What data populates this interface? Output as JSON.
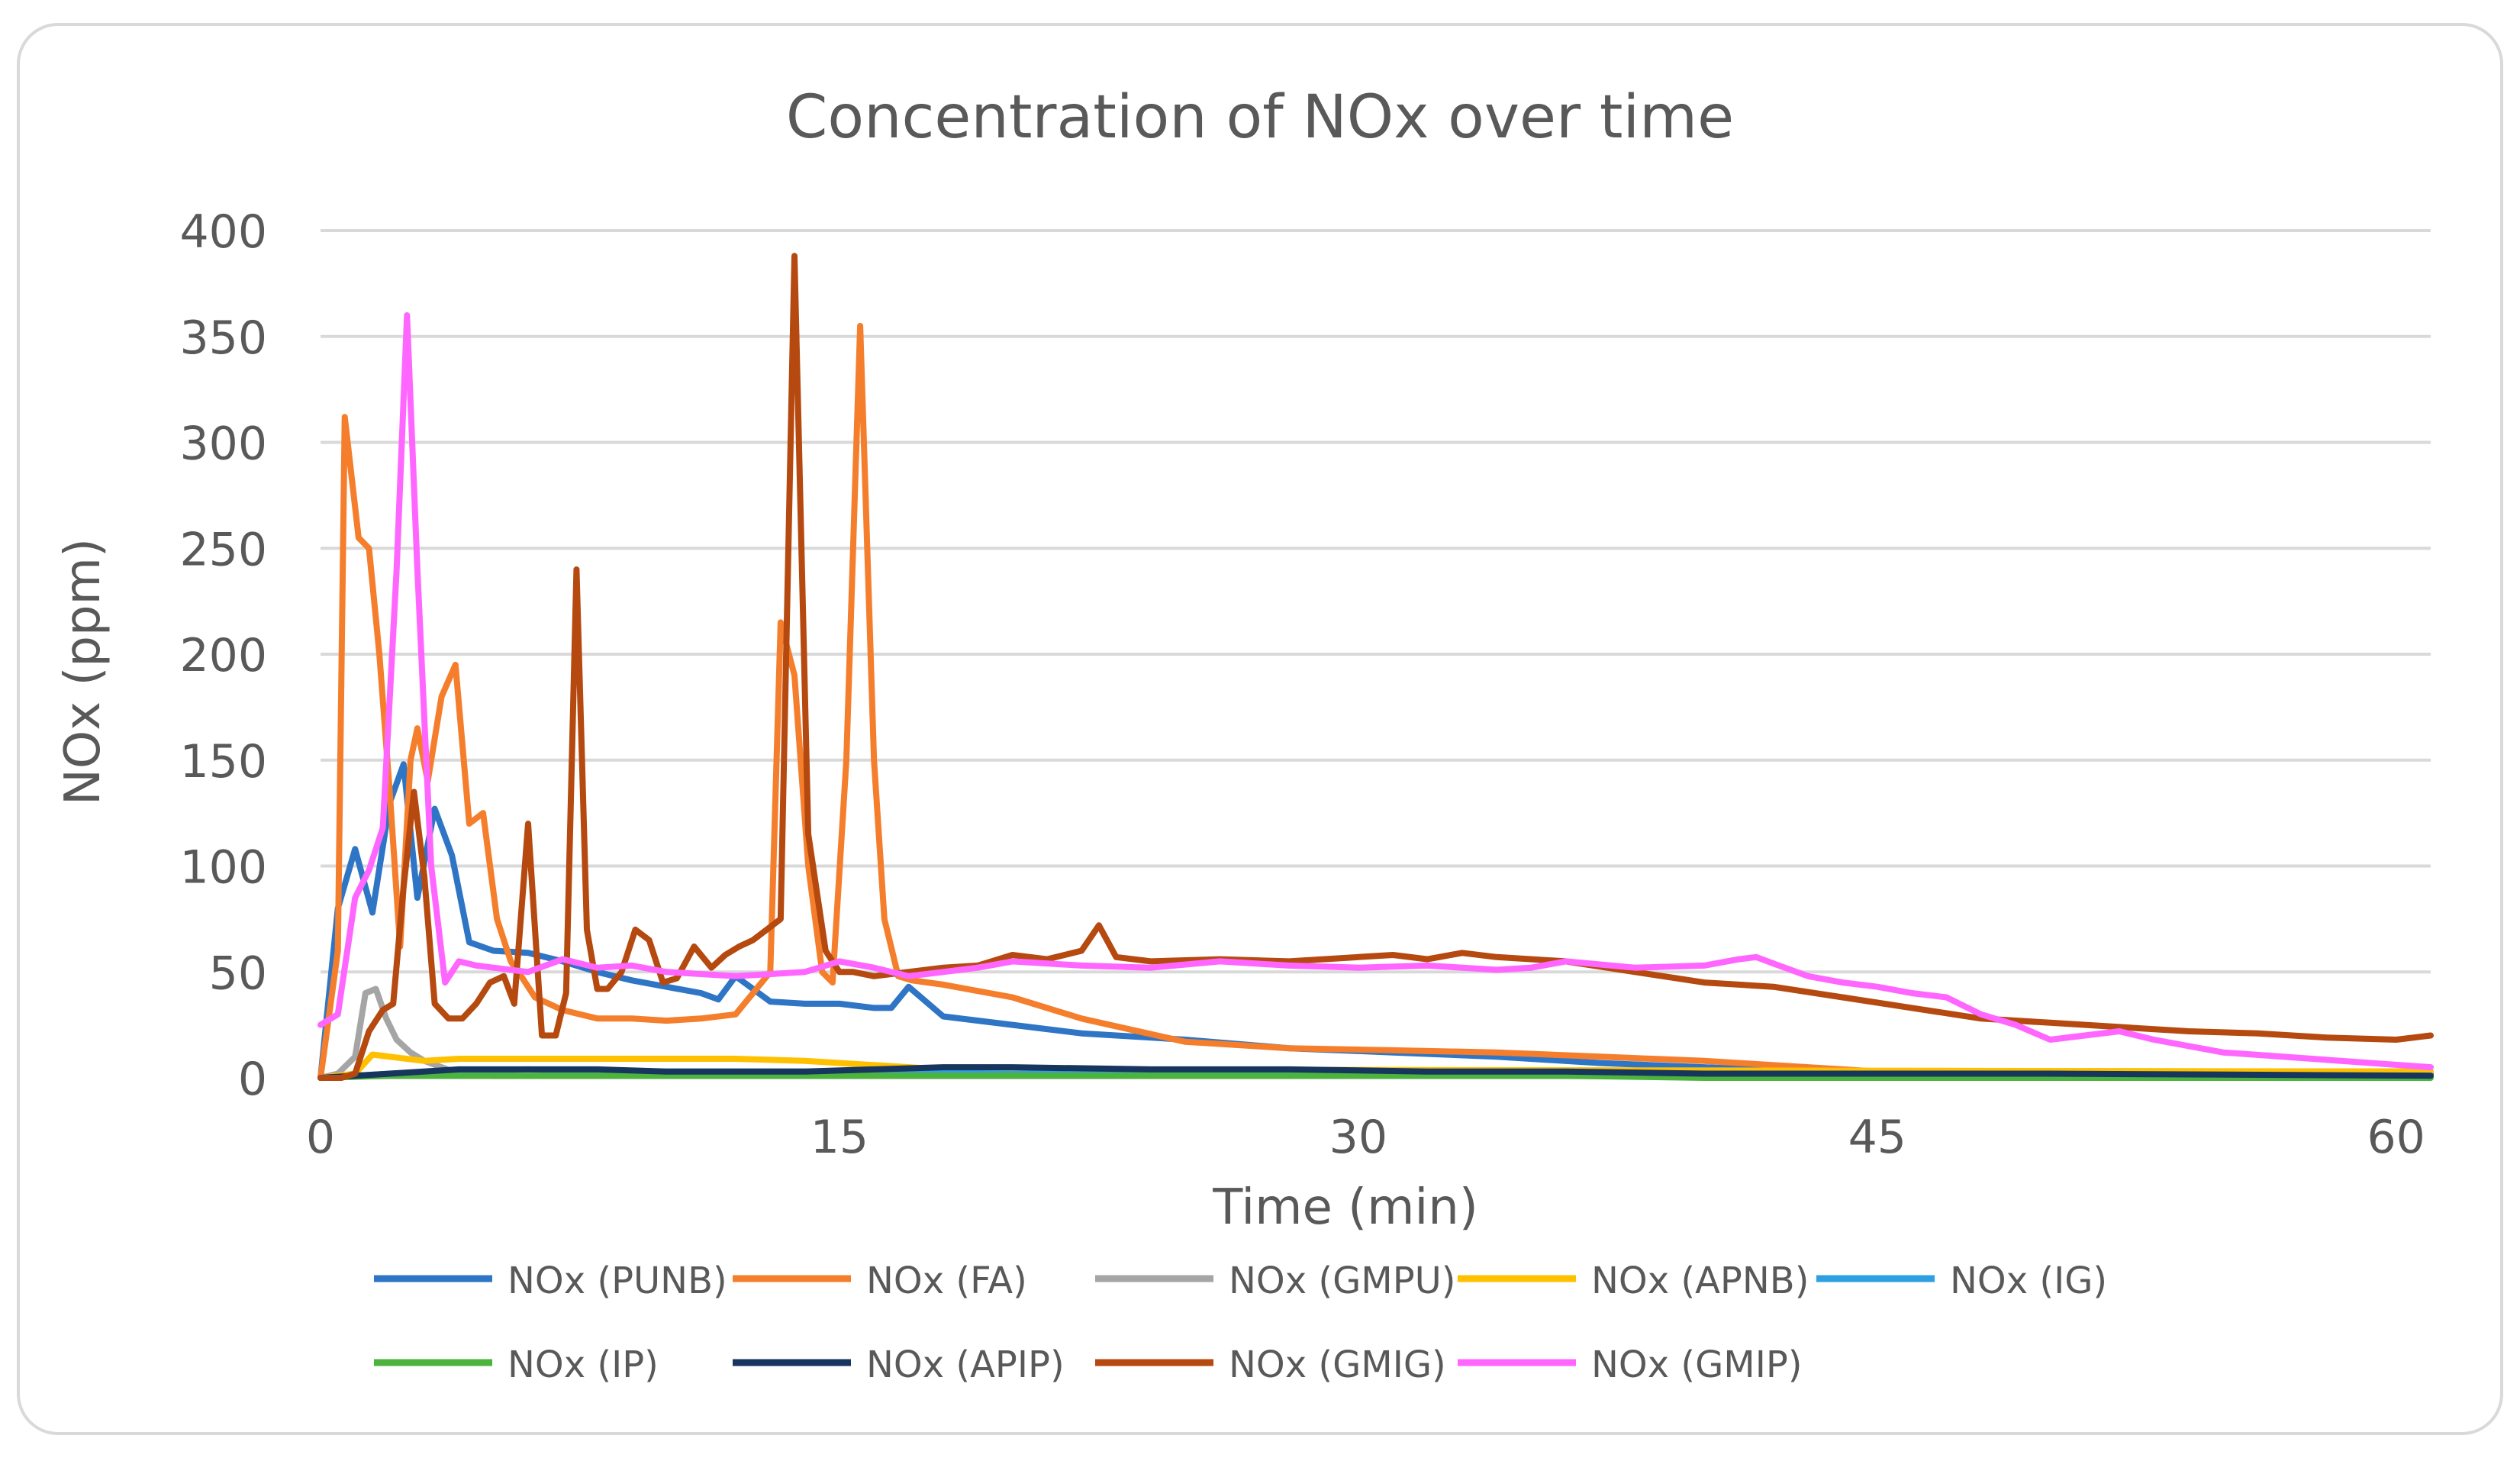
{
  "chart_data": {
    "type": "line",
    "title": "Concentration of NOx over time",
    "xlabel": "Time (min)",
    "ylabel": "NOx (ppm)",
    "xlim": [
      0,
      61
    ],
    "ylim": [
      0,
      400
    ],
    "x_ticks": [
      0,
      15,
      30,
      45,
      60
    ],
    "y_ticks": [
      0,
      50,
      100,
      150,
      200,
      250,
      300,
      350,
      400
    ],
    "grid": "horizontal",
    "legend_position": "bottom",
    "series": [
      {
        "name": "NOx (PUNB)",
        "color": "#2E75C5",
        "x": [
          0,
          0.5,
          1,
          1.5,
          2,
          2.4,
          2.8,
          3.3,
          3.8,
          4.3,
          5,
          6,
          7,
          8,
          9,
          10,
          11,
          11.5,
          12,
          13,
          14,
          15,
          16,
          16.5,
          17,
          18,
          20,
          22,
          25,
          28,
          31,
          34,
          37,
          40,
          43,
          46,
          50,
          55,
          61
        ],
        "y": [
          0,
          80,
          108,
          78,
          130,
          148,
          85,
          127,
          105,
          64,
          60,
          59,
          55,
          50,
          46,
          43,
          40,
          37,
          48,
          36,
          35,
          35,
          33,
          33,
          43,
          29,
          25,
          21,
          18,
          14,
          12,
          10,
          7,
          5,
          3,
          2,
          2,
          2,
          2
        ]
      },
      {
        "name": "NOx (FA)",
        "color": "#F47E2C",
        "x": [
          0,
          0.5,
          0.7,
          1.1,
          1.4,
          1.7,
          2.0,
          2.3,
          2.6,
          2.8,
          3.1,
          3.5,
          3.9,
          4.3,
          4.7,
          5.1,
          5.5,
          5.8,
          6.2,
          6.6,
          7.0,
          7.5,
          8,
          9,
          10,
          11,
          12,
          13,
          13.3,
          13.7,
          14.1,
          14.5,
          14.8,
          15.2,
          15.6,
          16.0,
          16.3,
          16.7,
          17.1,
          18,
          20,
          22,
          25,
          28,
          31,
          34,
          37,
          40,
          43,
          46,
          48,
          61
        ],
        "y": [
          0,
          60,
          312,
          255,
          250,
          200,
          135,
          62,
          150,
          165,
          140,
          180,
          195,
          120,
          125,
          75,
          55,
          48,
          38,
          35,
          32,
          30,
          28,
          28,
          27,
          28,
          30,
          50,
          215,
          190,
          100,
          50,
          45,
          150,
          355,
          150,
          75,
          48,
          46,
          44,
          38,
          28,
          17,
          14,
          13,
          12,
          10,
          8,
          5,
          2,
          1,
          1
        ]
      },
      {
        "name": "NOx (GMPU)",
        "color": "#A5A5A5",
        "x": [
          0,
          0.5,
          1.0,
          1.3,
          1.6,
          1.9,
          2.2,
          2.6,
          3.0,
          3.5,
          4,
          5,
          61
        ],
        "y": [
          0,
          2,
          10,
          40,
          42,
          28,
          18,
          12,
          8,
          5,
          2,
          1,
          1
        ]
      },
      {
        "name": "NOx (APNB)",
        "color": "#FFC000",
        "x": [
          0,
          1.0,
          1.5,
          2,
          3,
          4,
          6,
          8,
          10,
          12,
          14,
          16,
          18,
          61
        ],
        "y": [
          0,
          2,
          11,
          10,
          8,
          9,
          9,
          9,
          9,
          9,
          8,
          6,
          4,
          3
        ]
      },
      {
        "name": "NOx (IG)",
        "color": "#2E9FE0",
        "x": [
          0,
          2,
          4,
          6,
          8,
          10,
          14,
          20,
          61
        ],
        "y": [
          0,
          2,
          3,
          4,
          3,
          3,
          3,
          2,
          1
        ]
      },
      {
        "name": "NOx (IP)",
        "color": "#4CB43C",
        "x": [
          0,
          2,
          5,
          10,
          20,
          36,
          40,
          61
        ],
        "y": [
          0,
          1,
          1,
          1,
          1,
          1,
          0,
          0
        ]
      },
      {
        "name": "NOx (APIP)",
        "color": "#17365D",
        "x": [
          0,
          2,
          4,
          6,
          8,
          10,
          14,
          18,
          20,
          24,
          28,
          32,
          36,
          40,
          46,
          50,
          61
        ],
        "y": [
          0,
          2,
          4,
          4,
          4,
          3,
          3,
          5,
          5,
          4,
          4,
          3,
          3,
          2,
          2,
          2,
          1
        ]
      },
      {
        "name": "NOx (GMIG)",
        "color": "#B5490F",
        "x": [
          0,
          0.6,
          1.0,
          1.4,
          1.8,
          2.1,
          2.4,
          2.7,
          3.0,
          3.3,
          3.7,
          4.1,
          4.5,
          4.9,
          5.3,
          5.6,
          6.0,
          6.4,
          6.8,
          7.1,
          7.4,
          7.7,
          8.0,
          8.3,
          8.7,
          9.1,
          9.5,
          9.9,
          10.3,
          10.8,
          11.3,
          11.7,
          12.1,
          12.5,
          12.9,
          13.3,
          13.7,
          14.1,
          14.6,
          15.0,
          15.4,
          16.0,
          18,
          19,
          20,
          21,
          22,
          22.5,
          23,
          24,
          26,
          28,
          30,
          31,
          32,
          33,
          34,
          36,
          38,
          40,
          42,
          44,
          46,
          48,
          50,
          52,
          54,
          56,
          58,
          60,
          61
        ],
        "y": [
          0,
          0,
          2,
          22,
          32,
          35,
          90,
          135,
          95,
          35,
          28,
          28,
          35,
          45,
          48,
          35,
          120,
          20,
          20,
          40,
          240,
          70,
          42,
          42,
          50,
          70,
          65,
          45,
          47,
          62,
          52,
          58,
          62,
          65,
          70,
          75,
          388,
          115,
          60,
          50,
          50,
          48,
          52,
          53,
          58,
          56,
          60,
          72,
          57,
          55,
          56,
          55,
          57,
          58,
          56,
          59,
          57,
          55,
          50,
          45,
          43,
          38,
          33,
          28,
          26,
          24,
          22,
          21,
          19,
          18,
          20
        ]
      },
      {
        "name": "NOx (GMIP)",
        "color": "#FF66FF",
        "x": [
          0,
          0.5,
          1.0,
          1.4,
          1.8,
          2.2,
          2.5,
          2.8,
          3.2,
          3.6,
          4.0,
          4.5,
          5,
          6,
          7,
          8,
          9,
          10,
          12,
          14,
          15,
          16,
          17,
          18,
          19,
          20,
          22,
          24,
          26,
          28,
          30,
          32,
          34,
          35,
          36,
          38,
          40,
          41,
          41.5,
          42,
          43,
          44,
          45,
          46,
          47,
          48,
          49,
          50,
          51,
          52,
          53,
          55,
          61
        ],
        "y": [
          25,
          30,
          85,
          98,
          118,
          240,
          360,
          240,
          100,
          45,
          55,
          53,
          52,
          50,
          56,
          52,
          53,
          50,
          48,
          50,
          55,
          52,
          48,
          50,
          52,
          55,
          53,
          52,
          55,
          53,
          52,
          53,
          51,
          52,
          55,
          52,
          53,
          56,
          57,
          54,
          48,
          45,
          43,
          40,
          38,
          30,
          25,
          18,
          20,
          22,
          18,
          12,
          5
        ]
      }
    ]
  }
}
